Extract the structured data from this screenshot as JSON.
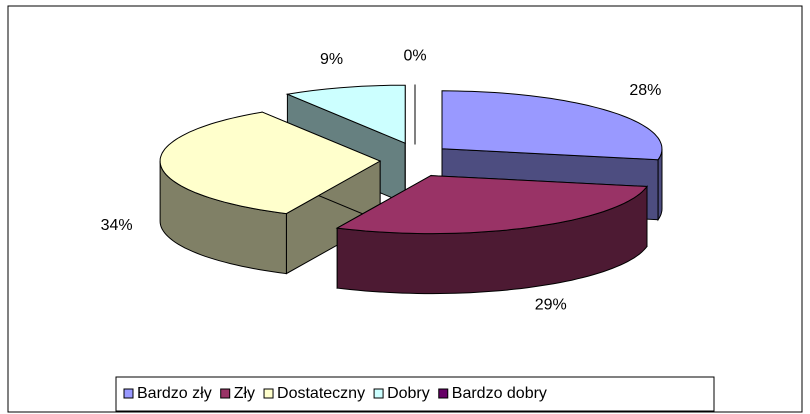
{
  "chart_data": {
    "type": "pie3d",
    "categories": [
      "Bardzo zły",
      "Zły",
      "Dostateczny",
      "Dobry",
      "Bardzo dobry"
    ],
    "values": [
      28,
      29,
      34,
      9,
      0
    ],
    "value_labels": [
      "28%",
      "29%",
      "34%",
      "9%",
      "0%"
    ],
    "colors": [
      "#9999ff",
      "#993366",
      "#ffffcc",
      "#ccffff",
      "#660066"
    ],
    "legend": "bottom"
  }
}
